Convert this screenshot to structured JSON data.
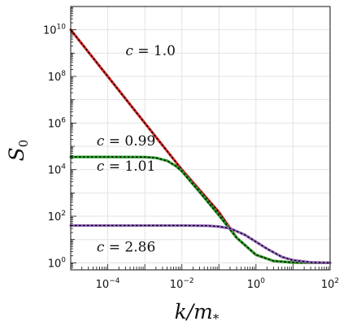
{
  "chart_data": {
    "type": "line",
    "xscale": "log",
    "yscale": "log",
    "xlim": [
      1e-05,
      100
    ],
    "ylim": [
      0.5,
      100000000000.0
    ],
    "grid": true,
    "xlabel": {
      "main": "k/m",
      "sub": "*"
    },
    "ylabel": {
      "main": "S",
      "sub": "0"
    },
    "xticks": [
      {
        "value": 0.0001,
        "base": "10",
        "exp": "−4"
      },
      {
        "value": 0.01,
        "base": "10",
        "exp": "−2"
      },
      {
        "value": 1,
        "base": "10",
        "exp": "0"
      },
      {
        "value": 100,
        "base": "10",
        "exp": "2"
      }
    ],
    "yticks": [
      {
        "value": 1,
        "base": "10",
        "exp": "0"
      },
      {
        "value": 100,
        "base": "10",
        "exp": "2"
      },
      {
        "value": 10000,
        "base": "10",
        "exp": "4"
      },
      {
        "value": 1000000,
        "base": "10",
        "exp": "6"
      },
      {
        "value": 100000000,
        "base": "10",
        "exp": "8"
      },
      {
        "value": 10000000000,
        "base": "10",
        "exp": "10"
      }
    ],
    "series": [
      {
        "color": "#d62728",
        "overlay": "#000000",
        "x": [
          1e-05,
          0.0001,
          0.001,
          0.01,
          0.1,
          0.3,
          1,
          3,
          10,
          100
        ],
        "y": [
          10000000000.0,
          100000000.0,
          1000000.0,
          10000.0,
          150,
          12,
          2.2,
          1.2,
          1.03,
          1.0
        ]
      },
      {
        "color": "#2ca02c",
        "overlay": "#000000",
        "x": [
          1e-05,
          0.0001,
          0.001,
          0.002,
          0.004,
          0.007,
          0.01,
          0.03,
          0.1,
          0.3,
          1,
          3,
          10,
          100
        ],
        "y": [
          35000,
          35000,
          34500,
          32000,
          24000,
          14000,
          8500,
          1100,
          110,
          12,
          2.2,
          1.2,
          1.03,
          1.0
        ]
      },
      {
        "color": "#9467bd",
        "overlay": "#000000",
        "x": [
          1e-05,
          0.0001,
          0.01,
          0.05,
          0.1,
          0.2,
          0.5,
          1,
          2,
          5,
          10,
          30,
          100
        ],
        "y": [
          40,
          40,
          40,
          39,
          36,
          30,
          16,
          8,
          4,
          1.8,
          1.3,
          1.05,
          1.0
        ]
      }
    ],
    "annotations": [
      {
        "lhs": "c",
        "eq": " = ",
        "rhs": "1.0",
        "anchor_x": 0.0003,
        "anchor_y": 800000000
      },
      {
        "lhs": "c",
        "eq": " = ",
        "rhs": "0.99",
        "anchor_x": 5e-05,
        "anchor_y": 110000
      },
      {
        "lhs": "c",
        "eq": " = ",
        "rhs": "1.01",
        "anchor_x": 5e-05,
        "anchor_y": 9000
      },
      {
        "lhs": "c",
        "eq": " = ",
        "rhs": "2.86",
        "anchor_x": 5e-05,
        "anchor_y": 3
      }
    ]
  }
}
